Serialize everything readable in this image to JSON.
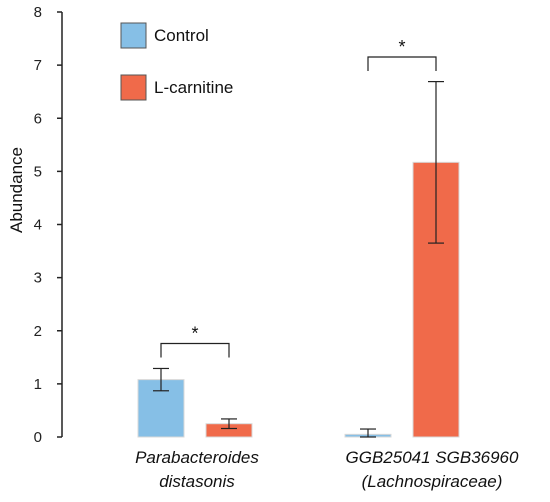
{
  "chart_data": {
    "type": "bar",
    "ylabel": "Abundance",
    "ylim": [
      0,
      8
    ],
    "yticks": [
      "0",
      "1",
      "2",
      "3",
      "4",
      "5",
      "6",
      "7",
      "8"
    ],
    "legend_position": "top-left",
    "categories": [
      {
        "lines": [
          "Parabacteroides",
          "distasonis"
        ]
      },
      {
        "lines": [
          "GGB25041 SGB36960",
          "(Lachnospiraceae)"
        ]
      }
    ],
    "series": [
      {
        "name": "Control",
        "color": "#86bfe6",
        "values": [
          1.08,
          0.05
        ],
        "errors": [
          0.21,
          0.1
        ]
      },
      {
        "name": "L-carnitine",
        "color": "#f06a4a",
        "values": [
          0.25,
          5.17
        ],
        "errors": [
          0.09,
          1.52
        ]
      }
    ],
    "significance": [
      {
        "category_index": 0,
        "label": "*"
      },
      {
        "category_index": 1,
        "label": "*"
      }
    ],
    "grid": false
  }
}
